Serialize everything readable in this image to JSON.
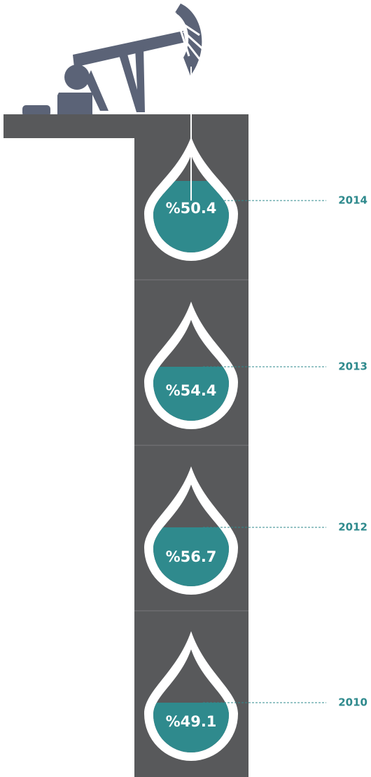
{
  "items": [
    {
      "year": "2014",
      "label": "%50.4"
    },
    {
      "year": "2013",
      "label": "%54.4"
    },
    {
      "year": "2012",
      "label": "%56.7"
    },
    {
      "year": "2010",
      "label": "%49.1"
    }
  ]
}
